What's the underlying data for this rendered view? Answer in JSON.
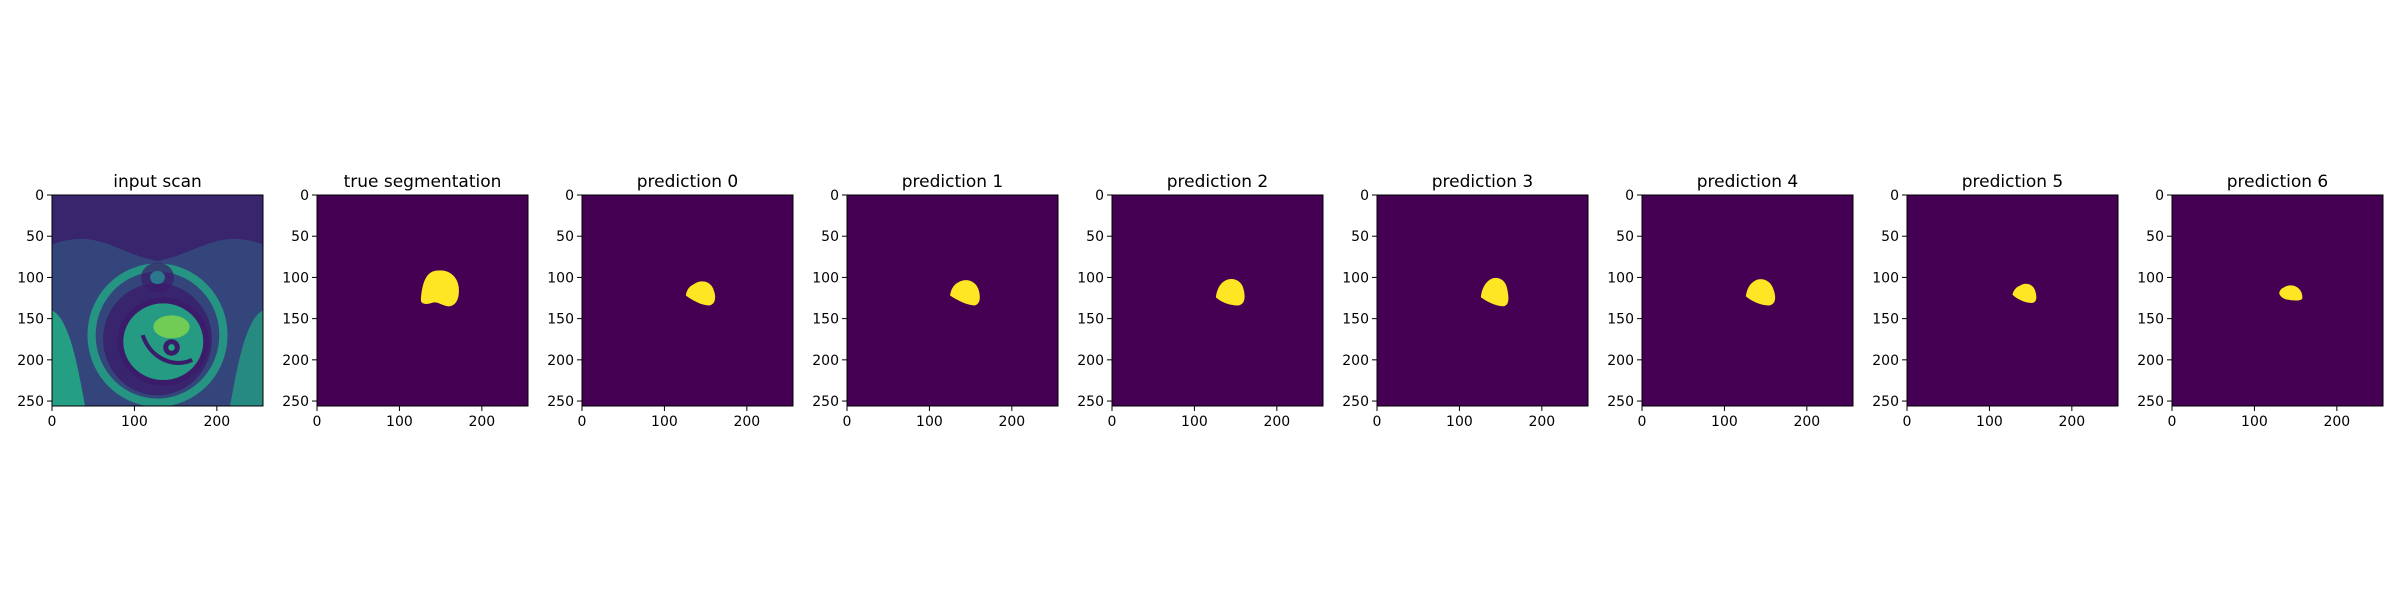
{
  "figure": {
    "panels": [
      {
        "id": "input",
        "title": "input scan",
        "kind": "scan"
      },
      {
        "id": "truth",
        "title": "true segmentation",
        "kind": "mask",
        "mask": "truth"
      },
      {
        "id": "p0",
        "title": "prediction 0",
        "kind": "mask",
        "mask": "p0"
      },
      {
        "id": "p1",
        "title": "prediction 1",
        "kind": "mask",
        "mask": "p1"
      },
      {
        "id": "p2",
        "title": "prediction 2",
        "kind": "mask",
        "mask": "p2"
      },
      {
        "id": "p3",
        "title": "prediction 3",
        "kind": "mask",
        "mask": "p3"
      },
      {
        "id": "p4",
        "title": "prediction 4",
        "kind": "mask",
        "mask": "p4"
      },
      {
        "id": "p5",
        "title": "prediction 5",
        "kind": "mask",
        "mask": "p5"
      },
      {
        "id": "p6",
        "title": "prediction 6",
        "kind": "mask",
        "mask": "p6"
      }
    ],
    "x_ticks": [
      "0",
      "100",
      "200"
    ],
    "y_ticks": [
      "0",
      "50",
      "100",
      "150",
      "200",
      "250"
    ],
    "x_tick_values": [
      0,
      100,
      200
    ],
    "y_tick_values": [
      0,
      50,
      100,
      150,
      200,
      250
    ],
    "image_extent": [
      0,
      256
    ],
    "colors": {
      "background": "#440154",
      "mask": "#fde725",
      "scan_dark": "#3b1c6b",
      "scan_mid": "#2a788e",
      "scan_light": "#22a884",
      "scan_bright": "#7ad151"
    }
  }
}
